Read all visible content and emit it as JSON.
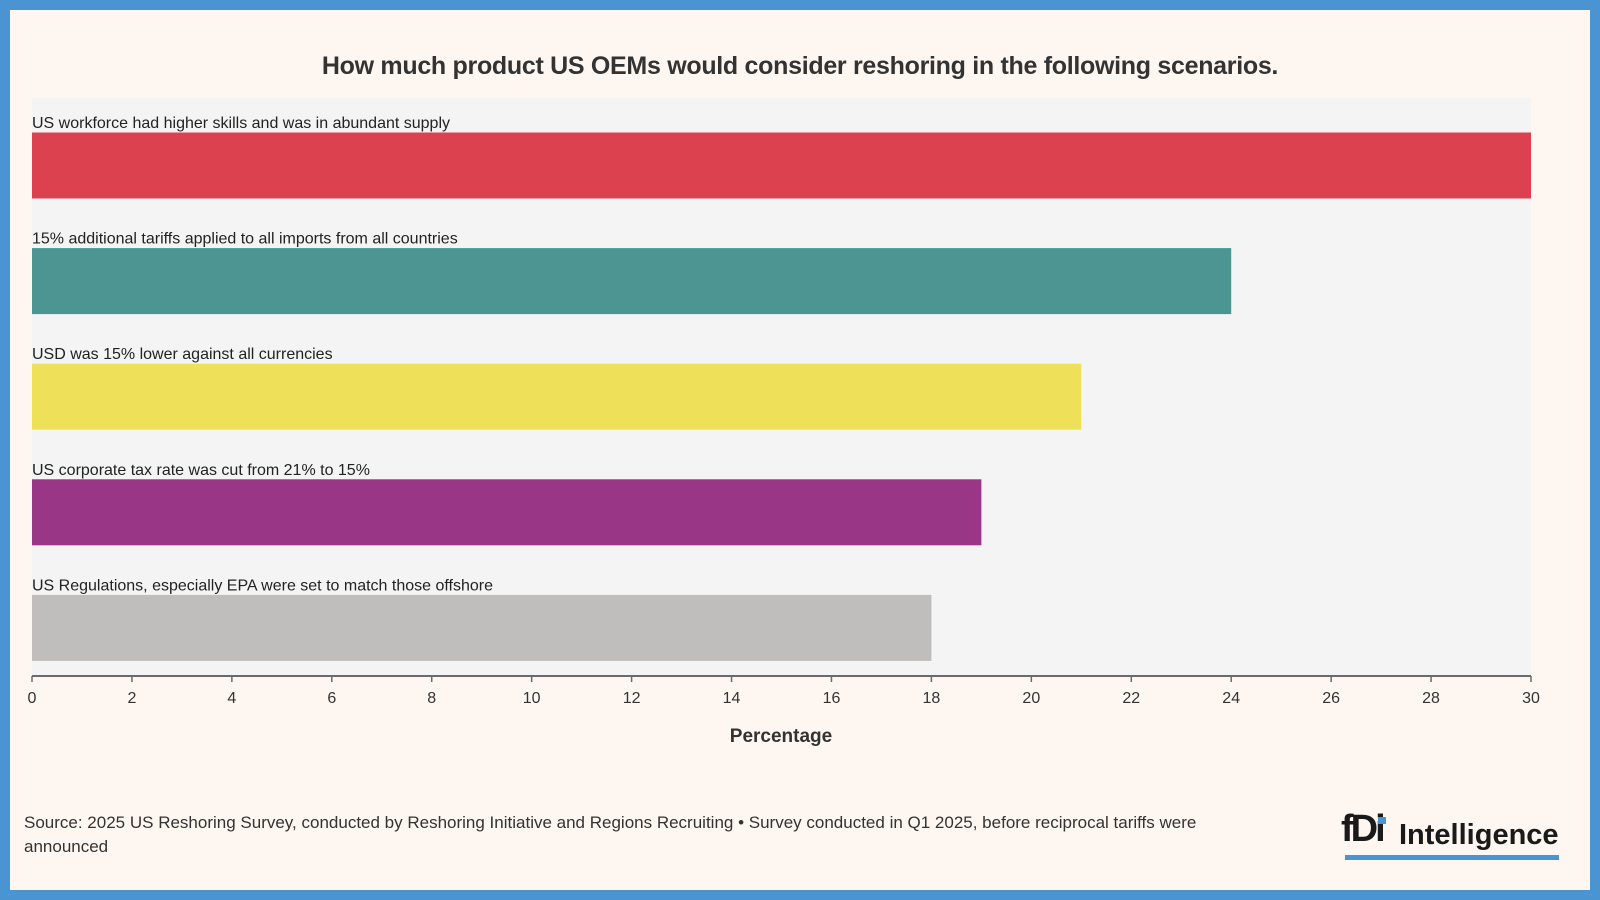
{
  "chart_data": {
    "type": "bar",
    "orientation": "horizontal",
    "title": "How much product US OEMs would consider reshoring in the following scenarios.",
    "xlabel": "Percentage",
    "ylabel": "",
    "categories": [
      "US workforce had higher skills and was in abundant supply",
      "15% additional tariffs applied to all imports from all countries",
      "USD was 15% lower against all currencies",
      "US corporate tax rate was cut from 21% to 15%",
      "US Regulations, especially EPA were set to match those offshore"
    ],
    "values": [
      30,
      24,
      21,
      19,
      18
    ],
    "colors": [
      "#db414f",
      "#4c9592",
      "#efe05a",
      "#993685",
      "#bfbebd"
    ],
    "xlim": [
      0,
      30
    ],
    "xticks": [
      "0",
      "2",
      "4",
      "6",
      "8",
      "10",
      "12",
      "14",
      "16",
      "18",
      "20",
      "22",
      "24",
      "26",
      "28",
      "30"
    ],
    "grid": false,
    "legend": "none"
  },
  "footer": {
    "source": "Source: 2025 US Reshoring Survey, conducted by Reshoring Initiative and Regions Recruiting • Survey conducted in Q1 2025, before reciprocal tariffs were announced"
  },
  "logo": {
    "mark": "fDi",
    "text": "Intelligence",
    "accent_color": "#4a94d2"
  }
}
